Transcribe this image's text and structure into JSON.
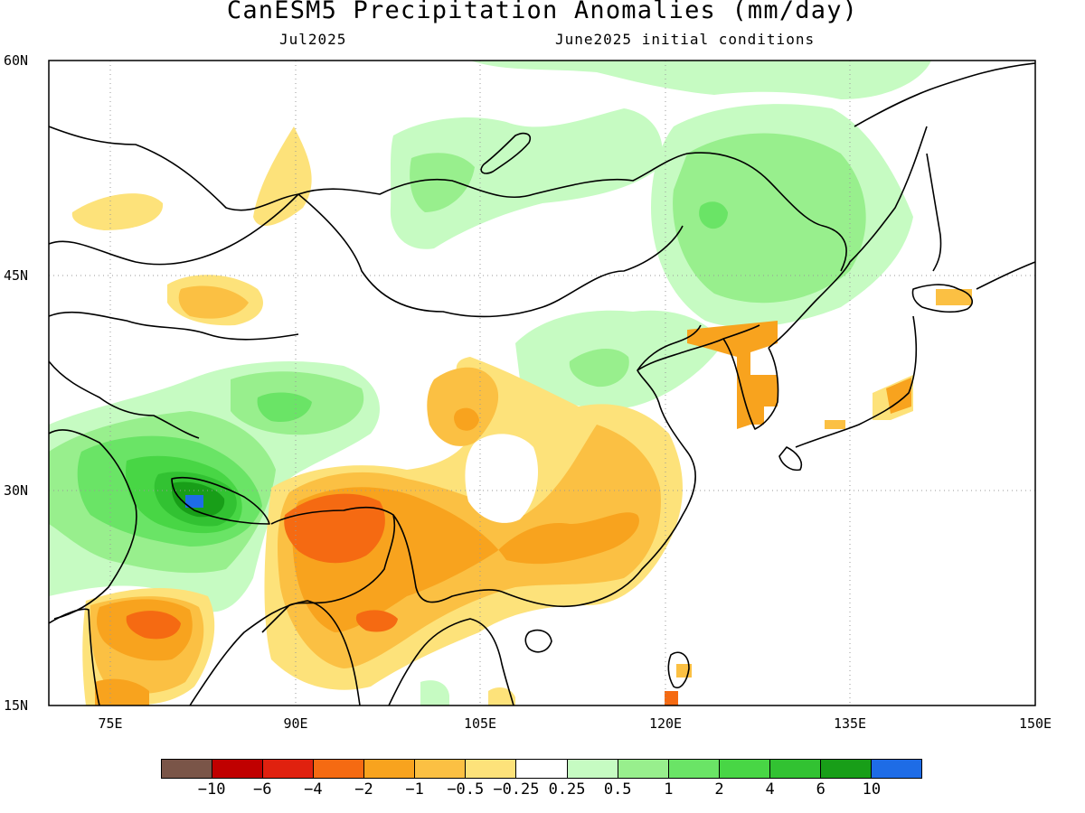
{
  "header": {
    "title": "CanESM5 Precipitation Anomalies (mm/day)",
    "month": "Jul2025",
    "init": "June2025 initial conditions"
  },
  "axes": {
    "lat_labels": [
      "60N",
      "45N",
      "30N",
      "15N"
    ],
    "lon_labels": [
      "75E",
      "90E",
      "105E",
      "120E",
      "135E",
      "150E"
    ],
    "lat_range": [
      15,
      60
    ],
    "lon_range": [
      70,
      150
    ]
  },
  "colorbar": {
    "colors": [
      "#7a5548",
      "#c00000",
      "#e0210f",
      "#f56a12",
      "#f8a31e",
      "#fbc043",
      "#fde27a",
      "#ffffff",
      "#c6fbc2",
      "#98ef8d",
      "#6ae466",
      "#48d645",
      "#32c232",
      "#189e18",
      "#1e6ce6"
    ],
    "labels": [
      "-10",
      "-6",
      "-4",
      "-2",
      "-1",
      "-0.5",
      "-0.25",
      "0.25",
      "0.5",
      "1",
      "2",
      "4",
      "6",
      "10"
    ]
  }
}
